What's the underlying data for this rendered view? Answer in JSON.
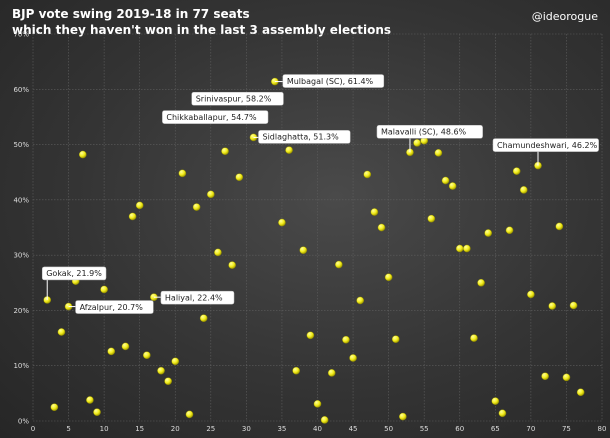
{
  "header": {
    "title_line1": "BJP vote swing 2019-18 in 77 seats",
    "title_line2": "which they haven't won in the last 3 assembly elections",
    "handle": "@ideorogue"
  },
  "chart_data": {
    "type": "scatter",
    "title": "BJP vote swing 2019-18 in 77 seats which they haven't won in the last 3 assembly elections",
    "xlabel": "",
    "ylabel": "",
    "xlim": [
      0,
      80
    ],
    "ylim": [
      0,
      70
    ],
    "x_ticks": [
      0,
      5,
      10,
      15,
      20,
      25,
      30,
      35,
      40,
      45,
      50,
      55,
      60,
      65,
      70,
      75,
      80
    ],
    "y_ticks": [
      0,
      10,
      20,
      30,
      40,
      50,
      60,
      70
    ],
    "y_tick_labels": [
      "0%",
      "10%",
      "20%",
      "30%",
      "40%",
      "50%",
      "60%",
      "70%"
    ],
    "grid": true,
    "marker_color": "#f2ec1a",
    "points": [
      {
        "x": 2,
        "y": 21.9
      },
      {
        "x": 3,
        "y": 2.5
      },
      {
        "x": 4,
        "y": 16.1
      },
      {
        "x": 5,
        "y": 20.7
      },
      {
        "x": 6,
        "y": 25.3
      },
      {
        "x": 7,
        "y": 48.2
      },
      {
        "x": 8,
        "y": 3.8
      },
      {
        "x": 9,
        "y": 1.6
      },
      {
        "x": 10,
        "y": 23.8
      },
      {
        "x": 11,
        "y": 12.6
      },
      {
        "x": 13,
        "y": 13.5
      },
      {
        "x": 14,
        "y": 37
      },
      {
        "x": 15,
        "y": 39
      },
      {
        "x": 16,
        "y": 11.9
      },
      {
        "x": 17,
        "y": 22.4
      },
      {
        "x": 18,
        "y": 9.1
      },
      {
        "x": 19,
        "y": 7.2
      },
      {
        "x": 20,
        "y": 10.8
      },
      {
        "x": 21,
        "y": 44.8
      },
      {
        "x": 22,
        "y": 1.2
      },
      {
        "x": 23,
        "y": 38.7
      },
      {
        "x": 24,
        "y": 18.6
      },
      {
        "x": 25,
        "y": 41
      },
      {
        "x": 26,
        "y": 30.5
      },
      {
        "x": 27,
        "y": 48.8
      },
      {
        "x": 28,
        "y": 28.2
      },
      {
        "x": 29,
        "y": 44.1
      },
      {
        "x": 30,
        "y": 54.7
      },
      {
        "x": 31,
        "y": 51.3
      },
      {
        "x": 32,
        "y": 54.9
      },
      {
        "x": 33,
        "y": 58.2
      },
      {
        "x": 34,
        "y": 61.4
      },
      {
        "x": 35,
        "y": 35.9
      },
      {
        "x": 36,
        "y": 49
      },
      {
        "x": 37,
        "y": 9.1
      },
      {
        "x": 38,
        "y": 30.9
      },
      {
        "x": 39,
        "y": 15.5
      },
      {
        "x": 40,
        "y": 3.1
      },
      {
        "x": 41,
        "y": 0.2
      },
      {
        "x": 42,
        "y": 8.7
      },
      {
        "x": 43,
        "y": 28.3
      },
      {
        "x": 44,
        "y": 14.7
      },
      {
        "x": 45,
        "y": 11.4
      },
      {
        "x": 46,
        "y": 21.8
      },
      {
        "x": 47,
        "y": 44.6
      },
      {
        "x": 48,
        "y": 37.8
      },
      {
        "x": 49,
        "y": 35
      },
      {
        "x": 50,
        "y": 26
      },
      {
        "x": 51,
        "y": 14.8
      },
      {
        "x": 52,
        "y": 0.8
      },
      {
        "x": 53,
        "y": 48.6
      },
      {
        "x": 54,
        "y": 50.3
      },
      {
        "x": 55,
        "y": 50.7
      },
      {
        "x": 56,
        "y": 36.6
      },
      {
        "x": 57,
        "y": 48.5
      },
      {
        "x": 58,
        "y": 43.5
      },
      {
        "x": 59,
        "y": 42.5
      },
      {
        "x": 60,
        "y": 31.2
      },
      {
        "x": 61,
        "y": 31.2
      },
      {
        "x": 62,
        "y": 15
      },
      {
        "x": 63,
        "y": 25
      },
      {
        "x": 64,
        "y": 34
      },
      {
        "x": 65,
        "y": 3.6
      },
      {
        "x": 66,
        "y": 1.4
      },
      {
        "x": 67,
        "y": 34.5
      },
      {
        "x": 68,
        "y": 45.2
      },
      {
        "x": 69,
        "y": 41.8
      },
      {
        "x": 70,
        "y": 22.9
      },
      {
        "x": 71,
        "y": 46.2
      },
      {
        "x": 72,
        "y": 8.1
      },
      {
        "x": 73,
        "y": 20.8
      },
      {
        "x": 74,
        "y": 35.2
      },
      {
        "x": 75,
        "y": 7.9
      },
      {
        "x": 76,
        "y": 20.9
      },
      {
        "x": 77,
        "y": 5.2
      }
    ],
    "annotations": [
      {
        "x": 2,
        "y": 21.9,
        "text": "Gokak, 21.9%"
      },
      {
        "x": 5,
        "y": 20.7,
        "text": "Afzalpur, 20.7%"
      },
      {
        "x": 17,
        "y": 22.4,
        "text": "Haliyal, 22.4%"
      },
      {
        "x": 30,
        "y": 54.7,
        "text": "Chikkaballapur, 54.7%"
      },
      {
        "x": 31,
        "y": 51.3,
        "text": "Sidlaghatta, 51.3%"
      },
      {
        "x": 33,
        "y": 58.2,
        "text": "Srinivaspur, 58.2%"
      },
      {
        "x": 34,
        "y": 61.4,
        "text": "Mulbagal (SC), 61.4%"
      },
      {
        "x": 53,
        "y": 48.6,
        "text": "Malavalli (SC), 48.6%"
      },
      {
        "x": 71,
        "y": 46.2,
        "text": "Chamundeshwari, 46.2%"
      }
    ]
  }
}
